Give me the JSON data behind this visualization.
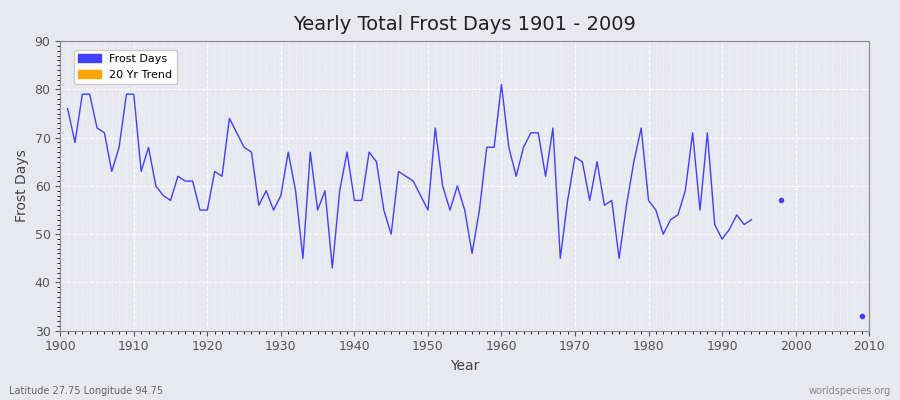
{
  "title": "Yearly Total Frost Days 1901 - 2009",
  "xlabel": "Year",
  "ylabel": "Frost Days",
  "bottom_left_label": "Latitude 27.75 Longitude 94.75",
  "bottom_right_label": "worldspecies.org",
  "line_color": "#4040ff",
  "trend_color": "#ffa500",
  "background_color": "#e8e8f0",
  "ylim": [
    30,
    90
  ],
  "yticks": [
    30,
    40,
    50,
    60,
    70,
    80,
    90
  ],
  "years": [
    1901,
    1902,
    1903,
    1904,
    1905,
    1906,
    1907,
    1908,
    1909,
    1910,
    1911,
    1912,
    1913,
    1914,
    1915,
    1916,
    1917,
    1918,
    1919,
    1920,
    1921,
    1922,
    1923,
    1924,
    1925,
    1926,
    1927,
    1928,
    1929,
    1930,
    1931,
    1932,
    1933,
    1934,
    1935,
    1936,
    1937,
    1938,
    1939,
    1940,
    1941,
    1942,
    1943,
    1944,
    1945,
    1946,
    1947,
    1948,
    1949,
    1950,
    1951,
    1952,
    1953,
    1954,
    1955,
    1956,
    1957,
    1958,
    1959,
    1960,
    1961,
    1962,
    1963,
    1964,
    1965,
    1966,
    1967,
    1968,
    1969,
    1970,
    1971,
    1972,
    1973,
    1974,
    1975,
    1976,
    1977,
    1978,
    1979,
    1980,
    1981,
    1982,
    1983,
    1984,
    1985,
    1986,
    1987,
    1988,
    1989,
    1990,
    1991,
    1992,
    1993,
    1994,
    1995,
    1996,
    1997,
    1998,
    1999,
    2000,
    2001,
    2002,
    2003,
    2004,
    2005,
    2006,
    2007,
    2008,
    2009
  ],
  "frost_days": [
    76,
    69,
    79,
    79,
    72,
    71,
    63,
    68,
    79,
    79,
    63,
    68,
    60,
    58,
    57,
    62,
    61,
    61,
    55,
    55,
    63,
    62,
    74,
    71,
    68,
    67,
    56,
    59,
    55,
    58,
    67,
    59,
    45,
    67,
    55,
    59,
    43,
    59,
    67,
    57,
    57,
    67,
    65,
    55,
    50,
    63,
    62,
    61,
    58,
    55,
    72,
    60,
    55,
    60,
    55,
    46,
    55,
    68,
    68,
    81,
    68,
    62,
    68,
    71,
    71,
    62,
    72,
    45,
    57,
    66,
    65,
    57,
    65,
    56,
    57,
    45,
    56,
    65,
    72,
    57,
    55,
    50,
    53,
    54,
    59,
    71,
    55,
    71,
    52,
    49,
    51,
    54,
    52,
    53,
    null,
    null,
    null,
    57,
    null,
    null,
    null,
    null,
    null,
    null,
    null,
    null,
    null,
    null,
    33
  ]
}
